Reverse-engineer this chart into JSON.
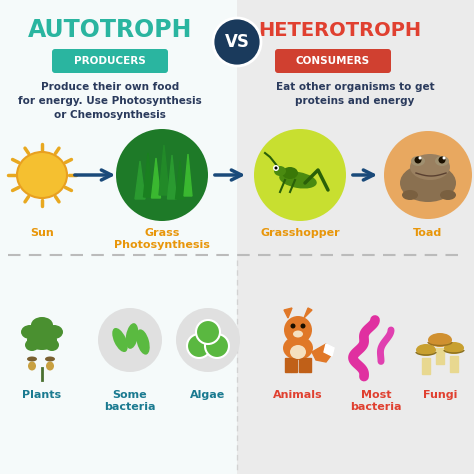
{
  "bg_left": "#f5fafa",
  "bg_right": "#ebebeb",
  "title_left": "AUTOTROPH",
  "title_right": "HETEROTROPH",
  "vs_text": "VS",
  "vs_bg": "#1a3a5c",
  "title_left_color": "#2ab5a0",
  "title_right_color": "#e04030",
  "badge_left_text": "PRODUCERS",
  "badge_left_color": "#2ab5a0",
  "badge_right_text": "CONSUMERS",
  "badge_right_color": "#d04030",
  "desc_left": "Produce their own food\nfor energy. Use Photosynthesis\nor Chemosynthesis",
  "desc_right": "Eat other organisms to get\nproteins and energy",
  "desc_color": "#2a3a5c",
  "label_sun": "Sun",
  "label_grass": "Grass\nPhotosynthesis",
  "label_grasshopper": "Grasshopper",
  "label_toad": "Toad",
  "label_color_orange": "#e8960a",
  "label_color_red": "#e04030",
  "label_plants": "Plants",
  "label_bacteria1": "Some\nbacteria",
  "label_algae": "Algae",
  "label_animals": "Animals",
  "label_bacteria2": "Most\nbacteria",
  "label_fungi": "Fungi",
  "bottom_label_left_color": "#1a7a90",
  "bottom_label_right_color": "#e04030",
  "arrow_color": "#1a4a7a",
  "divider_color": "#bbbbbb",
  "sun_color": "#f5c030",
  "grass_circle_color": "#2d8c3c",
  "grasshopper_circle_color": "#c8df30",
  "toad_circle_color": "#e8a860",
  "bottom_circle_color": "#e0e0e0",
  "figsize": [
    4.74,
    4.74
  ],
  "dpi": 100
}
